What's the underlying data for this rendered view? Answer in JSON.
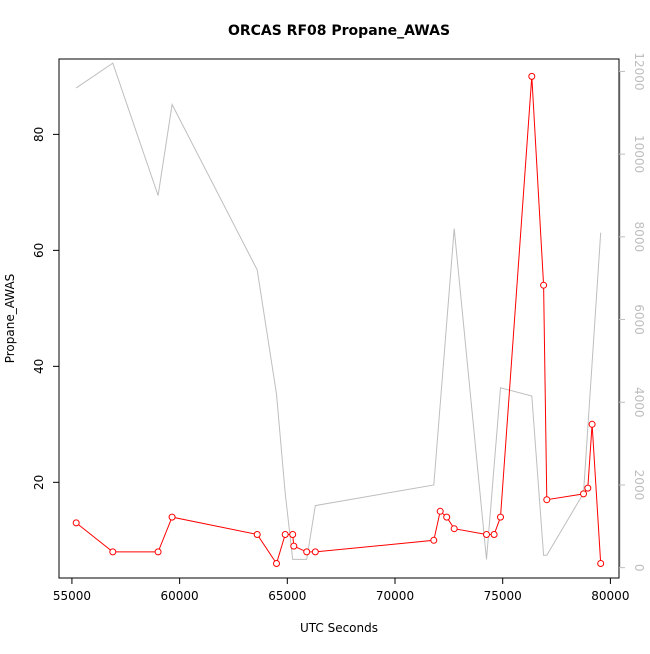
{
  "chart_data": {
    "type": "line",
    "title": "ORCAS RF08 Propane_AWAS",
    "xlabel": "UTC Seconds",
    "ylabel": "Propane_AWAS",
    "xlim": [
      54400,
      80400
    ],
    "ylim": [
      3.5,
      93
    ],
    "y2lim": [
      -250,
      12300
    ],
    "x_ticks": [
      55000,
      60000,
      65000,
      70000,
      75000,
      80000
    ],
    "y_ticks": [
      20,
      40,
      60,
      80
    ],
    "y2_ticks": [
      0,
      2000,
      4000,
      6000,
      8000,
      10000,
      12000
    ],
    "grid": false,
    "colors": {
      "primary": "#ff0000",
      "secondary": "#bebebe"
    },
    "series": [
      {
        "axis": "left",
        "marker": "open-circle",
        "x": [
          55200,
          56900,
          59000,
          59650,
          63600,
          64500,
          64900,
          65250,
          65300,
          65900,
          66300,
          71800,
          72100,
          72400,
          72750,
          74250,
          74600,
          74900,
          76350,
          76900,
          77050,
          78750,
          78950,
          79150,
          79550
        ],
        "y": [
          13,
          8,
          8,
          14,
          11,
          6,
          11,
          11,
          9,
          8,
          8,
          10,
          15,
          14,
          12,
          11,
          11,
          14,
          90,
          54,
          17,
          18,
          19,
          30,
          6
        ]
      },
      {
        "axis": "right",
        "marker": "none",
        "x": [
          55200,
          56900,
          59000,
          59650,
          63600,
          64500,
          64900,
          65250,
          65300,
          65900,
          66300,
          71800,
          72750,
          74250,
          74900,
          76350,
          76900,
          77050,
          78750,
          79550
        ],
        "y": [
          11600,
          12200,
          9000,
          11200,
          7200,
          4200,
          1800,
          200,
          200,
          200,
          1500,
          2000,
          8200,
          200,
          4350,
          4150,
          300,
          300,
          1800,
          8100
        ]
      }
    ]
  }
}
